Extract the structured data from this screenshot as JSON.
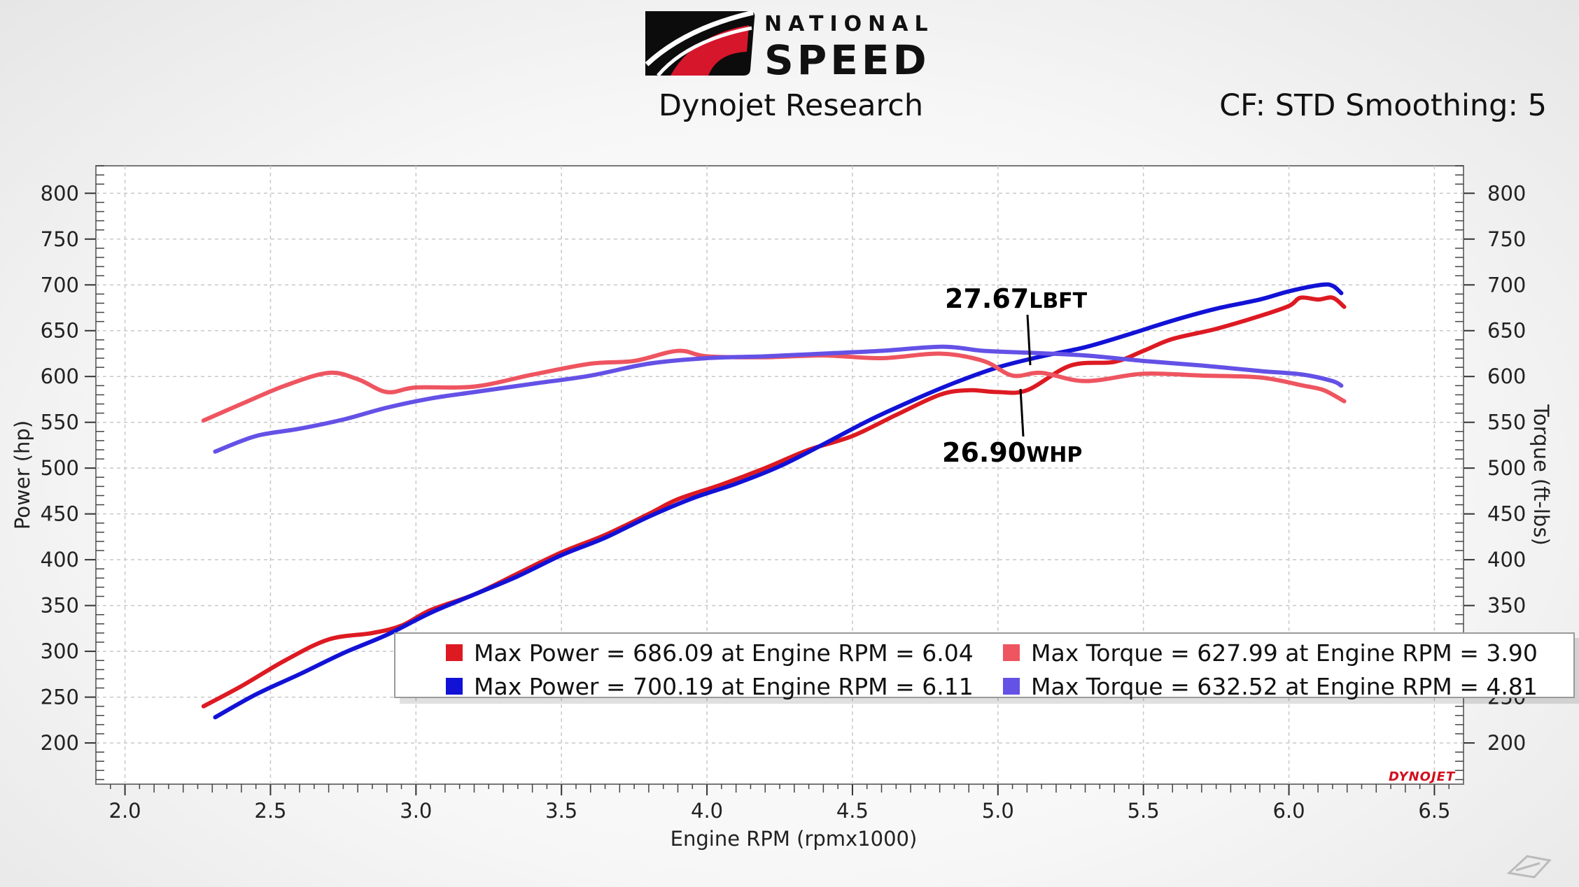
{
  "header": {
    "logo_text_top": "NATIONAL",
    "logo_text_main": "SPEED",
    "subtitle": "Dynojet Research",
    "correction": "CF: STD Smoothing: 5"
  },
  "chart_data": {
    "type": "line",
    "xlabel": "Engine RPM (rpmx1000)",
    "ylabel_left": "Power (hp)",
    "ylabel_right": "Torque (ft-lbs)",
    "xlim": [
      1.9,
      6.6
    ],
    "ylim": [
      155,
      830
    ],
    "x_ticks": [
      "2.0",
      "2.5",
      "3.0",
      "3.5",
      "4.0",
      "4.5",
      "5.0",
      "5.5",
      "6.0",
      "6.5"
    ],
    "x_tick_values": [
      2.0,
      2.5,
      3.0,
      3.5,
      4.0,
      4.5,
      5.0,
      5.5,
      6.0,
      6.5
    ],
    "y_ticks_left": [
      "800",
      "750",
      "700",
      "650",
      "600",
      "550",
      "500",
      "450",
      "400",
      "350",
      "300",
      "250",
      "200"
    ],
    "y_ticks_right": [
      "800",
      "750",
      "700",
      "650",
      "600",
      "550",
      "500",
      "450",
      "400",
      "350",
      "250",
      "200"
    ],
    "grid": true,
    "series": [
      {
        "name": "Max Power",
        "color": "#dd1a22",
        "x": [
          2.27,
          2.4,
          2.55,
          2.7,
          2.85,
          2.95,
          3.05,
          3.2,
          3.35,
          3.5,
          3.65,
          3.8,
          3.9,
          4.05,
          4.2,
          4.35,
          4.5,
          4.65,
          4.8,
          4.9,
          5.0,
          5.1,
          5.25,
          5.4,
          5.5,
          5.6,
          5.75,
          5.9,
          6.0,
          6.04,
          6.1,
          6.15,
          6.19
        ],
        "values": [
          240,
          262,
          290,
          313,
          320,
          328,
          345,
          362,
          385,
          408,
          427,
          450,
          466,
          482,
          500,
          520,
          535,
          558,
          580,
          585,
          583,
          585,
          612,
          616,
          628,
          641,
          652,
          666,
          677,
          686,
          684,
          686,
          676
        ]
      },
      {
        "name": "Max Power",
        "color": "#1212d6",
        "x": [
          2.31,
          2.45,
          2.6,
          2.75,
          2.9,
          3.05,
          3.2,
          3.35,
          3.5,
          3.65,
          3.8,
          3.95,
          4.1,
          4.25,
          4.4,
          4.55,
          4.7,
          4.85,
          5.0,
          5.15,
          5.3,
          5.45,
          5.6,
          5.75,
          5.9,
          6.0,
          6.11,
          6.15,
          6.18
        ],
        "values": [
          228,
          253,
          275,
          298,
          318,
          342,
          362,
          382,
          405,
          424,
          447,
          467,
          483,
          502,
          526,
          551,
          573,
          593,
          610,
          622,
          632,
          646,
          661,
          674,
          684,
          693,
          700,
          699,
          691
        ]
      },
      {
        "name": "Max Torque",
        "color": "#ee5560",
        "x": [
          2.27,
          2.4,
          2.55,
          2.7,
          2.8,
          2.9,
          3.0,
          3.2,
          3.4,
          3.6,
          3.75,
          3.9,
          4.0,
          4.2,
          4.4,
          4.6,
          4.8,
          4.95,
          5.05,
          5.15,
          5.3,
          5.5,
          5.7,
          5.9,
          6.05,
          6.12,
          6.19
        ],
        "values": [
          552,
          570,
          590,
          604,
          597,
          583,
          588,
          589,
          602,
          614,
          617,
          627.99,
          622,
          621,
          623,
          620,
          625,
          617,
          601,
          604,
          595,
          603,
          601,
          599,
          590,
          585,
          573
        ]
      },
      {
        "name": "Max Torque",
        "color": "#6451e6",
        "x": [
          2.31,
          2.45,
          2.6,
          2.75,
          2.9,
          3.05,
          3.2,
          3.4,
          3.6,
          3.8,
          4.0,
          4.2,
          4.4,
          4.6,
          4.81,
          4.95,
          5.1,
          5.3,
          5.5,
          5.7,
          5.9,
          6.05,
          6.15,
          6.18
        ],
        "values": [
          518,
          535,
          543,
          553,
          566,
          576,
          583,
          592,
          601,
          614,
          620,
          622,
          625,
          628,
          632.52,
          628,
          626,
          623,
          617,
          612,
          606,
          602,
          595,
          590
        ]
      }
    ],
    "annotations": [
      {
        "value": "27.67",
        "unit": "LBFT"
      },
      {
        "value": "26.90",
        "unit": "WHP"
      }
    ],
    "legend": {
      "placement": "bottom-right",
      "items": [
        {
          "text": "Max Power = 686.09 at Engine RPM = 6.04",
          "color": "#dd1a22"
        },
        {
          "text": "Max Torque = 627.99 at Engine RPM = 3.90",
          "color": "#ee5560"
        },
        {
          "text": "Max Power = 700.19 at Engine RPM = 6.11",
          "color": "#1212d6"
        },
        {
          "text": "Max Torque = 632.52 at Engine RPM = 4.81",
          "color": "#6451e6"
        }
      ]
    }
  },
  "watermark": "DYNOJET"
}
